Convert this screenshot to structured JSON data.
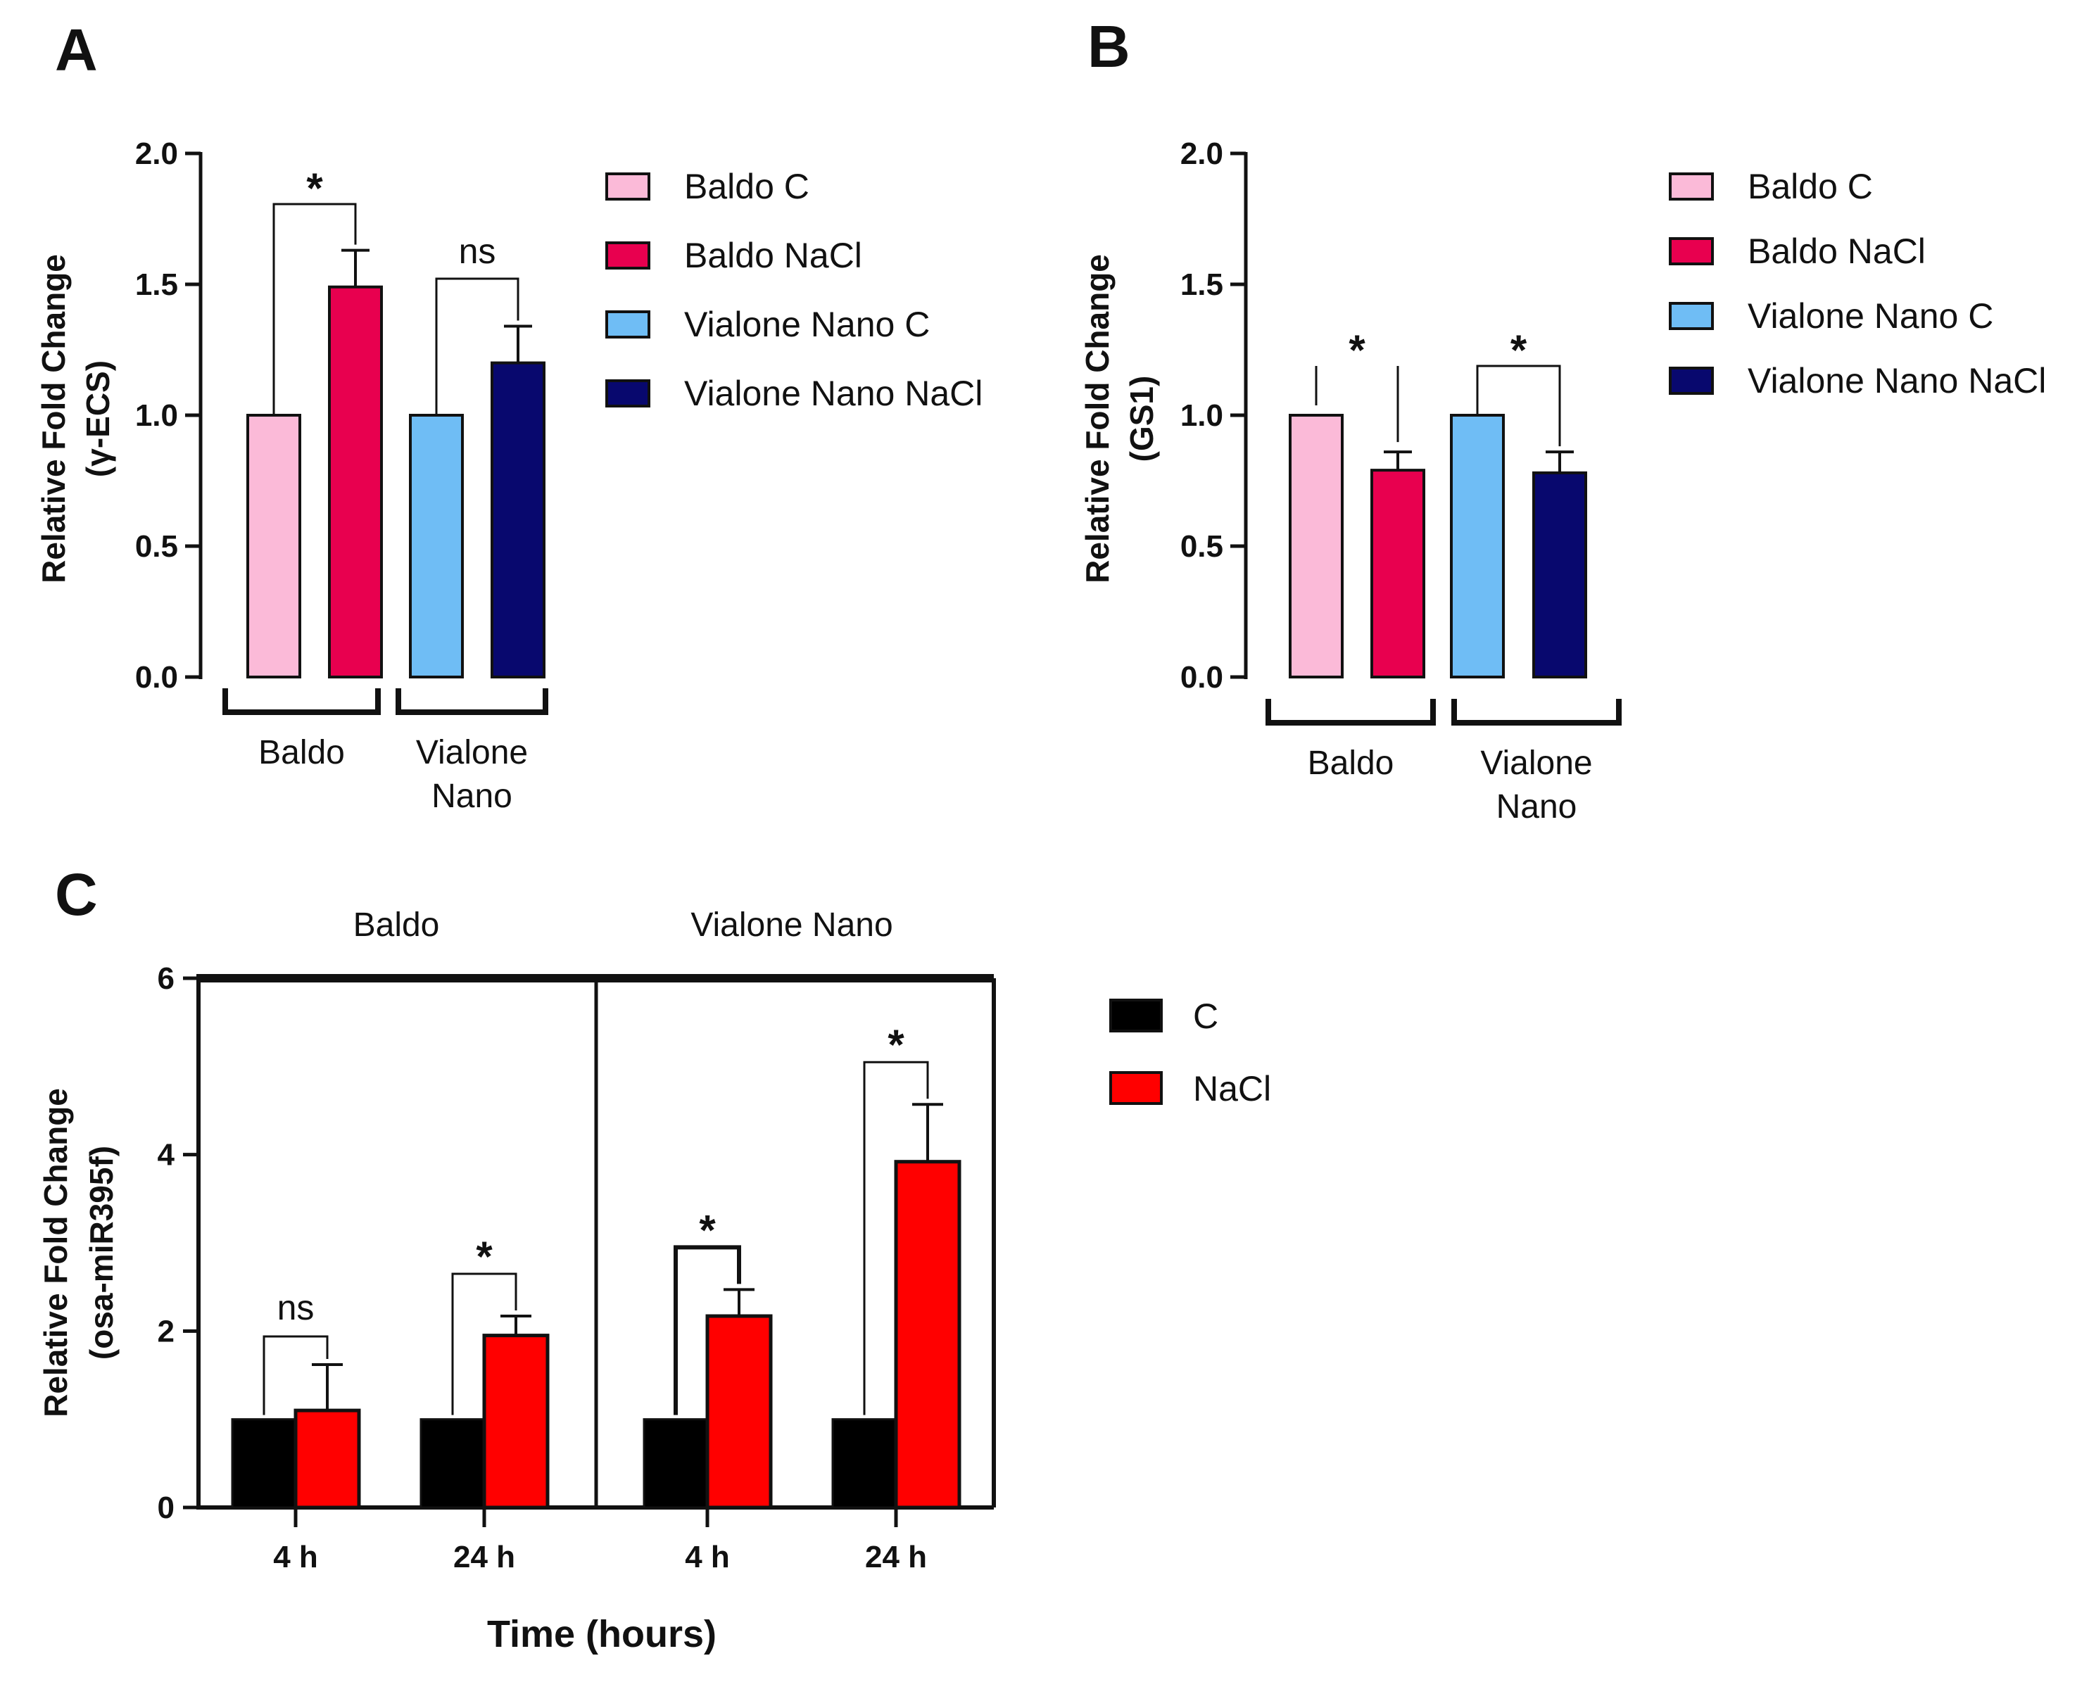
{
  "chart_data": [
    {
      "panel": "A",
      "type": "bar",
      "ylabel": [
        "Relative Fold Change",
        "(γ-ECS)"
      ],
      "ylim": [
        0,
        2.0
      ],
      "yticks": [
        "0.0",
        "0.5",
        "1.0",
        "1.5",
        "2.0"
      ],
      "groups": [
        {
          "label": [
            "Baldo"
          ]
        },
        {
          "label": [
            "Vialone",
            "Nano"
          ]
        }
      ],
      "series": [
        {
          "name": "Baldo C",
          "value": 1.0,
          "error": 0,
          "color": "#fbbad8"
        },
        {
          "name": "Baldo NaCl",
          "value": 1.49,
          "error": 0.14,
          "color": "#e8004f"
        },
        {
          "name": "Vialone Nano C",
          "value": 1.0,
          "error": 0,
          "color": "#6fbdf5"
        },
        {
          "name": "Vialone Nano NaCl",
          "value": 1.2,
          "error": 0.14,
          "color": "#08086e"
        }
      ],
      "significance": [
        "*",
        "ns"
      ]
    },
    {
      "panel": "B",
      "type": "bar",
      "ylabel": [
        "Relative Fold Change",
        "(GS1)"
      ],
      "ylim": [
        0,
        2.0
      ],
      "yticks": [
        "0.0",
        "0.5",
        "1.0",
        "1.5",
        "2.0"
      ],
      "groups": [
        {
          "label": [
            "Baldo"
          ]
        },
        {
          "label": [
            "Vialone",
            "Nano"
          ]
        }
      ],
      "series": [
        {
          "name": "Baldo C",
          "value": 1.0,
          "error": 0,
          "color": "#fbbad8"
        },
        {
          "name": "Baldo NaCl",
          "value": 0.79,
          "error": 0.07,
          "color": "#e8004f"
        },
        {
          "name": "Vialone Nano C",
          "value": 1.0,
          "error": 0,
          "color": "#6fbdf5"
        },
        {
          "name": "Vialone Nano NaCl",
          "value": 0.78,
          "error": 0.08,
          "color": "#08086e"
        }
      ],
      "significance": [
        "*",
        "*"
      ]
    },
    {
      "panel": "C",
      "type": "bar",
      "ylabel": [
        "Relative Fold Change",
        "(osa-miR395f)"
      ],
      "xlabel": "Time (hours)",
      "ylim": [
        0,
        6
      ],
      "yticks": [
        "0",
        "2",
        "4",
        "6"
      ],
      "facets": [
        "Baldo",
        "Vialone Nano"
      ],
      "categories": [
        "4 h",
        "24 h",
        "4 h",
        "24 h"
      ],
      "series": [
        {
          "name": "C",
          "color": "#000000",
          "values": [
            1.0,
            1.0,
            1.0,
            1.0
          ],
          "errors": [
            0,
            0,
            0,
            0
          ]
        },
        {
          "name": "NaCl",
          "color": "#ff0000",
          "values": [
            1.1,
            1.95,
            2.17,
            3.92
          ],
          "errors": [
            0.52,
            0.22,
            0.3,
            0.65
          ]
        }
      ],
      "significance": [
        "ns",
        "*",
        "*",
        "*"
      ]
    }
  ]
}
